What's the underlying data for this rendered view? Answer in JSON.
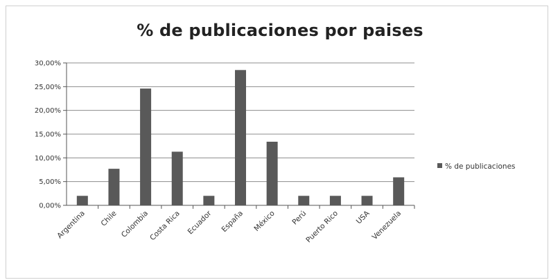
{
  "chart_data": {
    "type": "bar",
    "title": "% de publicaciones por paises",
    "categories": [
      "Argentina",
      "Chile",
      "Colombia",
      "Costa Rica",
      "Ecuador",
      "España",
      "México",
      "Perú",
      "Puerto Rico",
      "USA",
      "Venezuela"
    ],
    "series": [
      {
        "name": "% de publicaciones",
        "values": [
          0.02,
          0.077,
          0.246,
          0.113,
          0.02,
          0.285,
          0.134,
          0.02,
          0.02,
          0.02,
          0.059
        ]
      }
    ],
    "yticks": [
      "0,00%",
      "5,00%",
      "10,00%",
      "15,00%",
      "20,00%",
      "25,00%",
      "30,00%"
    ],
    "ylim": [
      0,
      0.3
    ],
    "xlabel": "",
    "ylabel": "",
    "grid": true,
    "legend": "right",
    "bar_color": "#595959",
    "grid_color": "#8c8c8c"
  }
}
